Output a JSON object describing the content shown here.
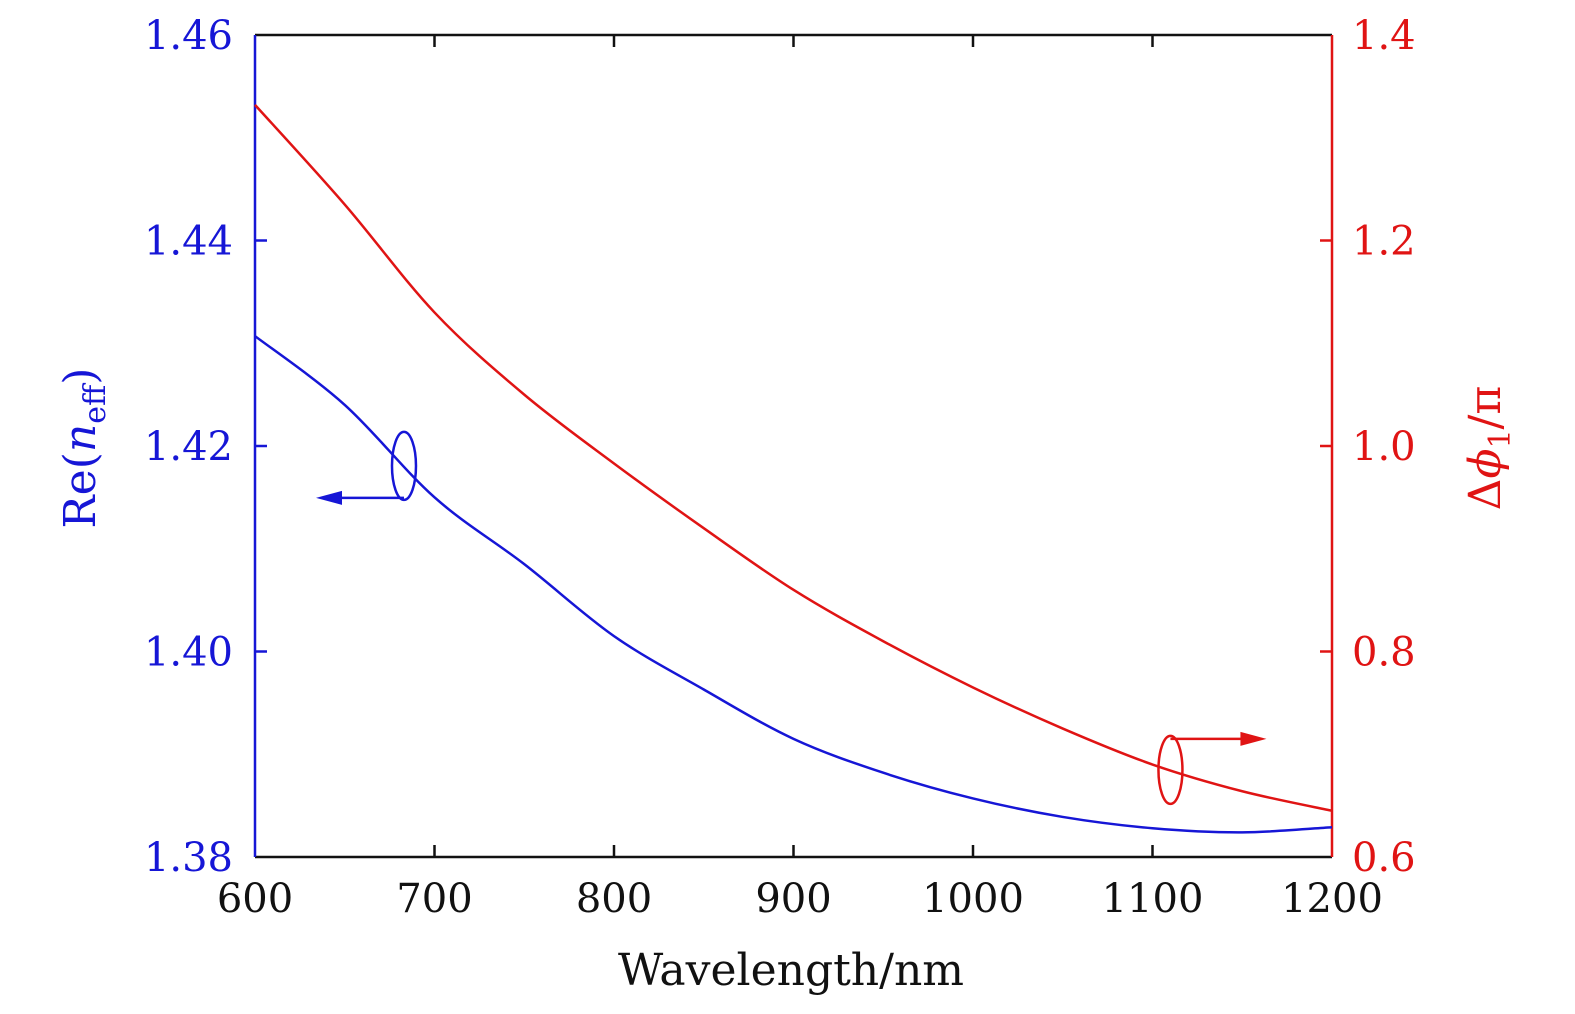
{
  "chart_data": {
    "type": "line",
    "xlabel": "Wavelength/nm",
    "ylabel_left": {
      "base": "Re(",
      "var": "n",
      "sub": "eff",
      "close": ")"
    },
    "ylabel_right": {
      "prefix": "Δ",
      "var": "ϕ",
      "sub": "1",
      "suffix": "/π"
    },
    "xlim": [
      600,
      1200
    ],
    "ylim_left": [
      1.38,
      1.46
    ],
    "ylim_right": [
      0.6,
      1.4
    ],
    "x_ticks": [
      "600",
      "700",
      "800",
      "900",
      "1000",
      "1100",
      "1200"
    ],
    "y_left_ticks": [
      "1.38",
      "1.40",
      "1.42",
      "1.44",
      "1.46"
    ],
    "y_right_ticks": [
      "0.6",
      "0.8",
      "1.0",
      "1.2",
      "1.4"
    ],
    "colors": {
      "left_axis": "#1616d6",
      "right_axis": "#e01414",
      "frame": "#111111"
    },
    "series": [
      {
        "axis": "left",
        "color": "#1616d6",
        "x": [
          600,
          650,
          700,
          750,
          800,
          850,
          900,
          950,
          1000,
          1050,
          1100,
          1150,
          1200
        ],
        "y": [
          1.4307,
          1.424,
          1.415,
          1.4085,
          1.4015,
          1.3963,
          1.3915,
          1.3882,
          1.3857,
          1.3839,
          1.3828,
          1.3824,
          1.3829
        ]
      },
      {
        "axis": "right",
        "color": "#e01414",
        "x": [
          600,
          650,
          700,
          750,
          800,
          850,
          900,
          950,
          1000,
          1050,
          1100,
          1150,
          1200
        ],
        "y": [
          1.332,
          1.235,
          1.13,
          1.05,
          0.983,
          0.92,
          0.86,
          0.81,
          0.765,
          0.725,
          0.69,
          0.664,
          0.645
        ]
      }
    ],
    "annotations": [
      {
        "axis_ref": "left",
        "direction": "left"
      },
      {
        "axis_ref": "right",
        "direction": "right"
      }
    ]
  }
}
